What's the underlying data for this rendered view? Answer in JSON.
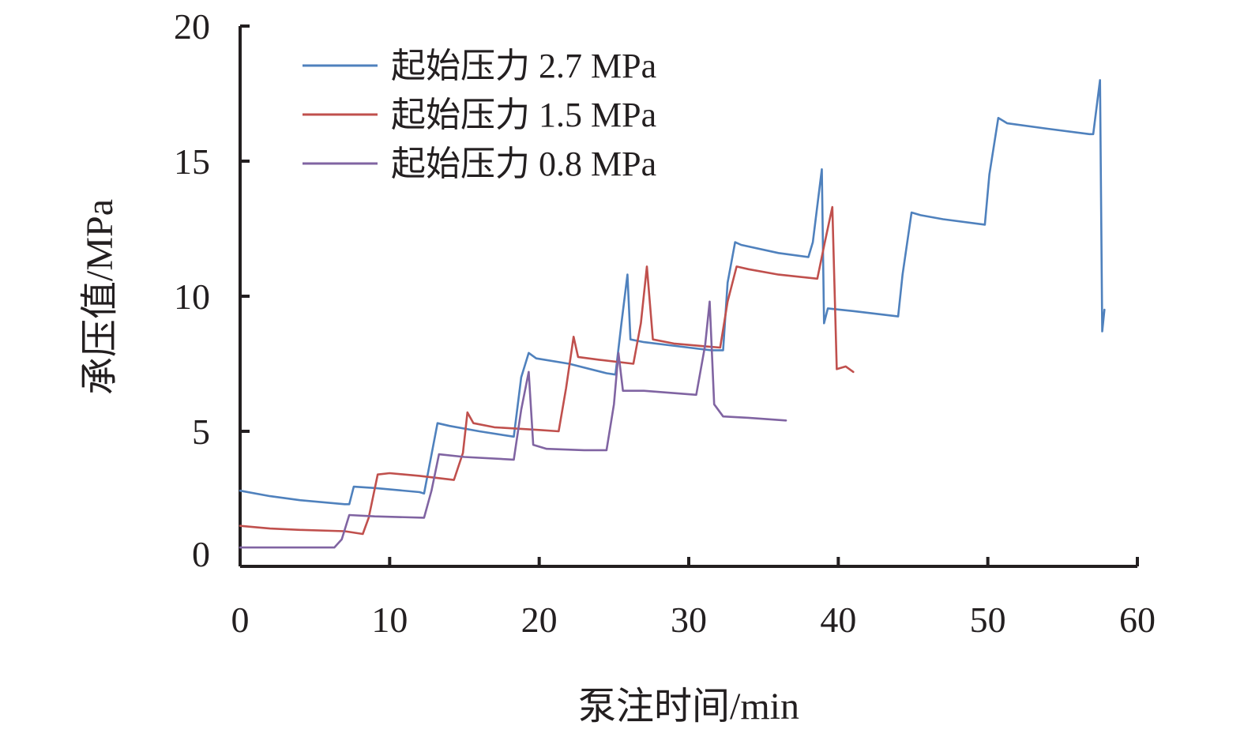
{
  "chart_data": {
    "type": "line",
    "xlabel": "泵注时间/min",
    "ylabel": "承压值/MPa",
    "xlim": [
      0,
      60
    ],
    "ylim": [
      0,
      20
    ],
    "xticks": [
      0,
      10,
      20,
      30,
      40,
      50,
      60
    ],
    "yticks": [
      0,
      5,
      10,
      15,
      20
    ],
    "grid": false,
    "legend_position": "top-left",
    "series": [
      {
        "name": "起始压力 2.7 MPa",
        "color": "#4f81bd",
        "points": [
          [
            0,
            2.8
          ],
          [
            2,
            2.6
          ],
          [
            4,
            2.45
          ],
          [
            7,
            2.3
          ],
          [
            7.3,
            2.3
          ],
          [
            7.6,
            2.95
          ],
          [
            9,
            2.9
          ],
          [
            12,
            2.75
          ],
          [
            12.3,
            2.7
          ],
          [
            13.2,
            5.3
          ],
          [
            14,
            5.2
          ],
          [
            16,
            5.0
          ],
          [
            18.3,
            4.8
          ],
          [
            18.8,
            7.0
          ],
          [
            19.3,
            7.9
          ],
          [
            19.8,
            7.7
          ],
          [
            22,
            7.5
          ],
          [
            24.5,
            7.15
          ],
          [
            25.1,
            7.1
          ],
          [
            25.5,
            9.0
          ],
          [
            25.9,
            10.8
          ],
          [
            26.1,
            8.4
          ],
          [
            27,
            8.3
          ],
          [
            30,
            8.1
          ],
          [
            31.5,
            8.0
          ],
          [
            32.3,
            8.0
          ],
          [
            32.6,
            10.5
          ],
          [
            33.1,
            12.0
          ],
          [
            33.5,
            11.9
          ],
          [
            36,
            11.6
          ],
          [
            38,
            11.45
          ],
          [
            38.3,
            12.0
          ],
          [
            38.9,
            14.7
          ],
          [
            39.05,
            9.0
          ],
          [
            39.3,
            9.55
          ],
          [
            41,
            9.45
          ],
          [
            44,
            9.25
          ],
          [
            44.3,
            10.8
          ],
          [
            44.9,
            13.1
          ],
          [
            45.5,
            13.0
          ],
          [
            47,
            12.85
          ],
          [
            49.8,
            12.65
          ],
          [
            50.1,
            14.5
          ],
          [
            50.7,
            16.6
          ],
          [
            51.3,
            16.4
          ],
          [
            54,
            16.2
          ],
          [
            56.8,
            16.0
          ],
          [
            57.05,
            16.0
          ],
          [
            57.5,
            18.0
          ],
          [
            57.65,
            8.7
          ],
          [
            57.8,
            9.5
          ]
        ]
      },
      {
        "name": "起始压力 1.5 MPa",
        "color": "#c0504d",
        "points": [
          [
            0,
            1.5
          ],
          [
            2,
            1.4
          ],
          [
            4,
            1.35
          ],
          [
            7,
            1.3
          ],
          [
            8.2,
            1.2
          ],
          [
            8.6,
            1.8
          ],
          [
            9.2,
            3.4
          ],
          [
            10,
            3.45
          ],
          [
            12,
            3.35
          ],
          [
            14.3,
            3.2
          ],
          [
            14.9,
            4.2
          ],
          [
            15.2,
            5.7
          ],
          [
            15.6,
            5.3
          ],
          [
            17,
            5.15
          ],
          [
            20,
            5.05
          ],
          [
            21.3,
            5.0
          ],
          [
            21.8,
            6.6
          ],
          [
            22.3,
            8.5
          ],
          [
            22.6,
            7.75
          ],
          [
            24,
            7.65
          ],
          [
            26.3,
            7.5
          ],
          [
            26.8,
            9.0
          ],
          [
            27.2,
            11.1
          ],
          [
            27.6,
            8.4
          ],
          [
            29,
            8.25
          ],
          [
            31,
            8.15
          ],
          [
            32.1,
            8.1
          ],
          [
            32.6,
            9.8
          ],
          [
            33.2,
            11.1
          ],
          [
            34,
            11.0
          ],
          [
            36,
            10.8
          ],
          [
            38.6,
            10.65
          ],
          [
            39.1,
            12.0
          ],
          [
            39.6,
            13.3
          ],
          [
            39.9,
            7.3
          ],
          [
            40.5,
            7.4
          ],
          [
            41,
            7.2
          ]
        ]
      },
      {
        "name": "起始压力 0.8 MPa",
        "color": "#8064a2",
        "points": [
          [
            0,
            0.7
          ],
          [
            3,
            0.7
          ],
          [
            6.3,
            0.7
          ],
          [
            6.8,
            1.0
          ],
          [
            7.3,
            1.9
          ],
          [
            9,
            1.85
          ],
          [
            12.3,
            1.8
          ],
          [
            12.8,
            2.8
          ],
          [
            13.3,
            4.15
          ],
          [
            15,
            4.05
          ],
          [
            18.3,
            3.95
          ],
          [
            18.8,
            5.8
          ],
          [
            19.3,
            7.2
          ],
          [
            19.6,
            4.5
          ],
          [
            20.5,
            4.35
          ],
          [
            23,
            4.3
          ],
          [
            24.5,
            4.3
          ],
          [
            25,
            6.0
          ],
          [
            25.3,
            7.9
          ],
          [
            25.6,
            6.5
          ],
          [
            27,
            6.5
          ],
          [
            30.5,
            6.35
          ],
          [
            31.1,
            8.2
          ],
          [
            31.4,
            9.8
          ],
          [
            31.7,
            6.0
          ],
          [
            32.3,
            5.55
          ],
          [
            34,
            5.5
          ],
          [
            36.5,
            5.4
          ]
        ]
      }
    ]
  }
}
